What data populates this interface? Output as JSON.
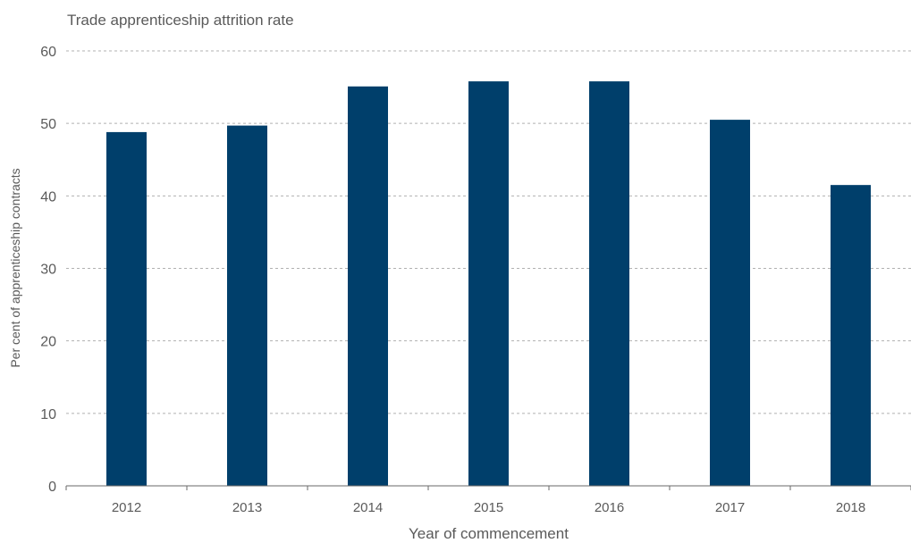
{
  "chart_data": {
    "type": "bar",
    "title": "Trade apprenticeship attrition rate",
    "xlabel": "Year of commencement",
    "ylabel": "Per cent of apprenticeship contracts",
    "categories": [
      "2012",
      "2013",
      "2014",
      "2015",
      "2016",
      "2017",
      "2018"
    ],
    "values": [
      48.8,
      49.7,
      55.1,
      55.8,
      55.8,
      50.5,
      41.5
    ],
    "ylim": [
      0,
      60
    ],
    "yticks": [
      0,
      10,
      20,
      30,
      40,
      50,
      60
    ],
    "grid": true,
    "bar_color": "#003f6b"
  }
}
